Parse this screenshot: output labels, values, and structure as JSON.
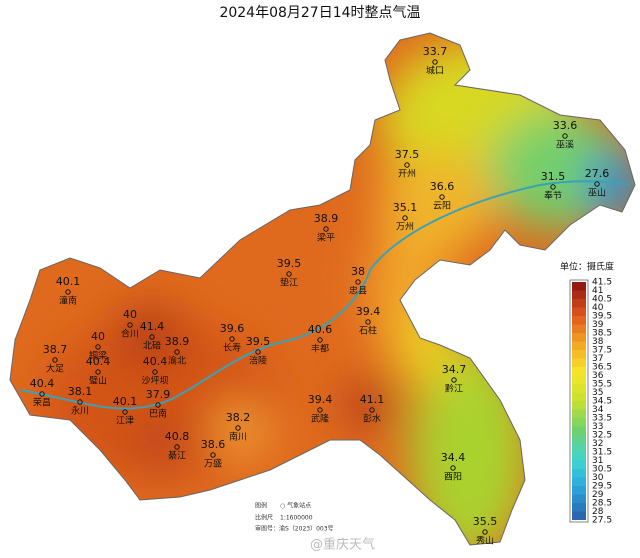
{
  "title": "2024年08月27日14时整点气温",
  "stations": [
    {
      "name": "城口",
      "value": "33.7"
    },
    {
      "name": "巫溪",
      "value": "33.6"
    },
    {
      "name": "开州",
      "value": "37.5"
    },
    {
      "name": "云阳",
      "value": "36.6"
    },
    {
      "name": "奉节",
      "value": "31.5"
    },
    {
      "name": "巫山",
      "value": "27.6"
    },
    {
      "name": "万州",
      "value": "35.1"
    },
    {
      "name": "梁平",
      "value": "38.9"
    },
    {
      "name": "垫江",
      "value": "39.5"
    },
    {
      "name": "忠县",
      "value": "38"
    },
    {
      "name": "石柱",
      "value": "39.4"
    },
    {
      "name": "潼南",
      "value": "40.1"
    },
    {
      "name": "合川",
      "value": "40"
    },
    {
      "name": "铜梁",
      "value": "40"
    },
    {
      "name": "北碚",
      "value": "41.4"
    },
    {
      "name": "渝北",
      "value": "38.9"
    },
    {
      "name": "大足",
      "value": "38.7"
    },
    {
      "name": "璧山",
      "value": "40.4"
    },
    {
      "name": "沙坪坝",
      "value": "40.4"
    },
    {
      "name": "荣昌",
      "value": "40.4"
    },
    {
      "name": "永川",
      "value": "38.1"
    },
    {
      "name": "江津",
      "value": "40.1"
    },
    {
      "name": "巴南",
      "value": "37.9"
    },
    {
      "name": "长寿",
      "value": "39.6"
    },
    {
      "name": "涪陵",
      "value": "39.5"
    },
    {
      "name": "丰都",
      "value": "40.6"
    },
    {
      "name": "南川",
      "value": "38.2"
    },
    {
      "name": "綦江",
      "value": "40.8"
    },
    {
      "name": "万盛",
      "value": "38.6"
    },
    {
      "name": "武隆",
      "value": "39.4"
    },
    {
      "name": "彭水",
      "value": "41.1"
    },
    {
      "name": "黔江",
      "value": "34.7"
    },
    {
      "name": "酉阳",
      "value": "34.4"
    },
    {
      "name": "秀山",
      "value": "35.5"
    }
  ],
  "legend": {
    "title": "单位：摄氏度",
    "ticks": [
      41.5,
      41,
      40.5,
      40,
      39.5,
      39,
      38.5,
      38,
      37.5,
      37,
      36.5,
      36,
      35.5,
      35,
      34.5,
      34,
      33.5,
      33,
      32.5,
      32,
      31.5,
      31,
      30.5,
      30,
      29.5,
      29,
      28.5,
      28,
      27.5
    ]
  },
  "footnote": {
    "legend_label": "图例",
    "legend_item": "○ 气象站点",
    "scale_label": "比例尺",
    "scale": "1:1600000",
    "approval": "审图号：渝S（2023）003号"
  },
  "watermark": "@重庆天气"
}
